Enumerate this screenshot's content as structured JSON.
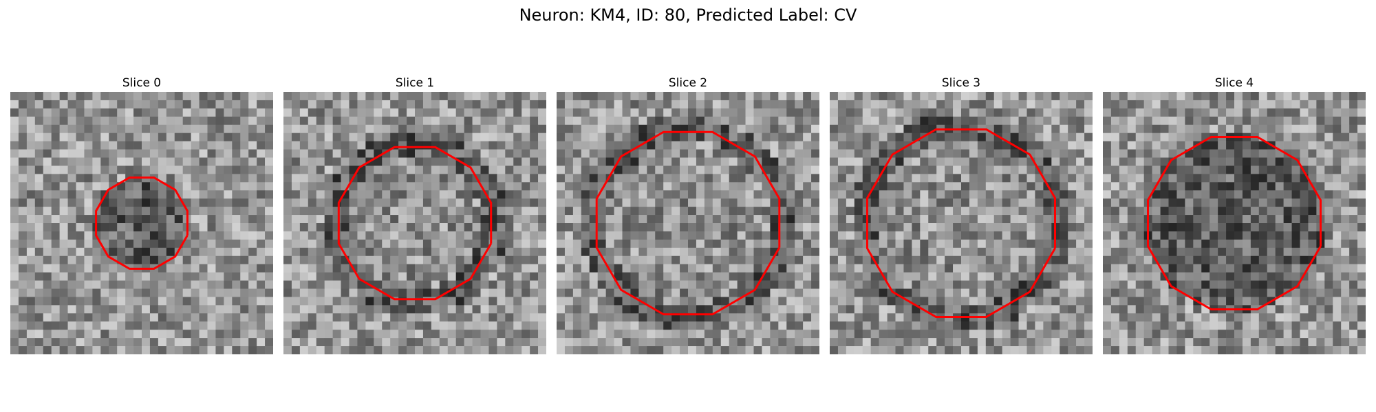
{
  "figure": {
    "title": "Neuron: KM4, ID: 80, Predicted Label: CV",
    "contour_color": "#ff0000",
    "colormap": "gray",
    "panels": [
      {
        "title": "Slice 0",
        "seed": 11,
        "contour_radius": 0.18,
        "dark_center": true
      },
      {
        "title": "Slice 1",
        "seed": 23,
        "contour_radius": 0.3,
        "dark_center": false
      },
      {
        "title": "Slice 2",
        "seed": 37,
        "contour_radius": 0.36,
        "dark_center": false
      },
      {
        "title": "Slice 3",
        "seed": 41,
        "contour_radius": 0.37,
        "dark_center": false
      },
      {
        "title": "Slice 4",
        "seed": 59,
        "contour_radius": 0.34,
        "dark_center": true
      }
    ]
  }
}
